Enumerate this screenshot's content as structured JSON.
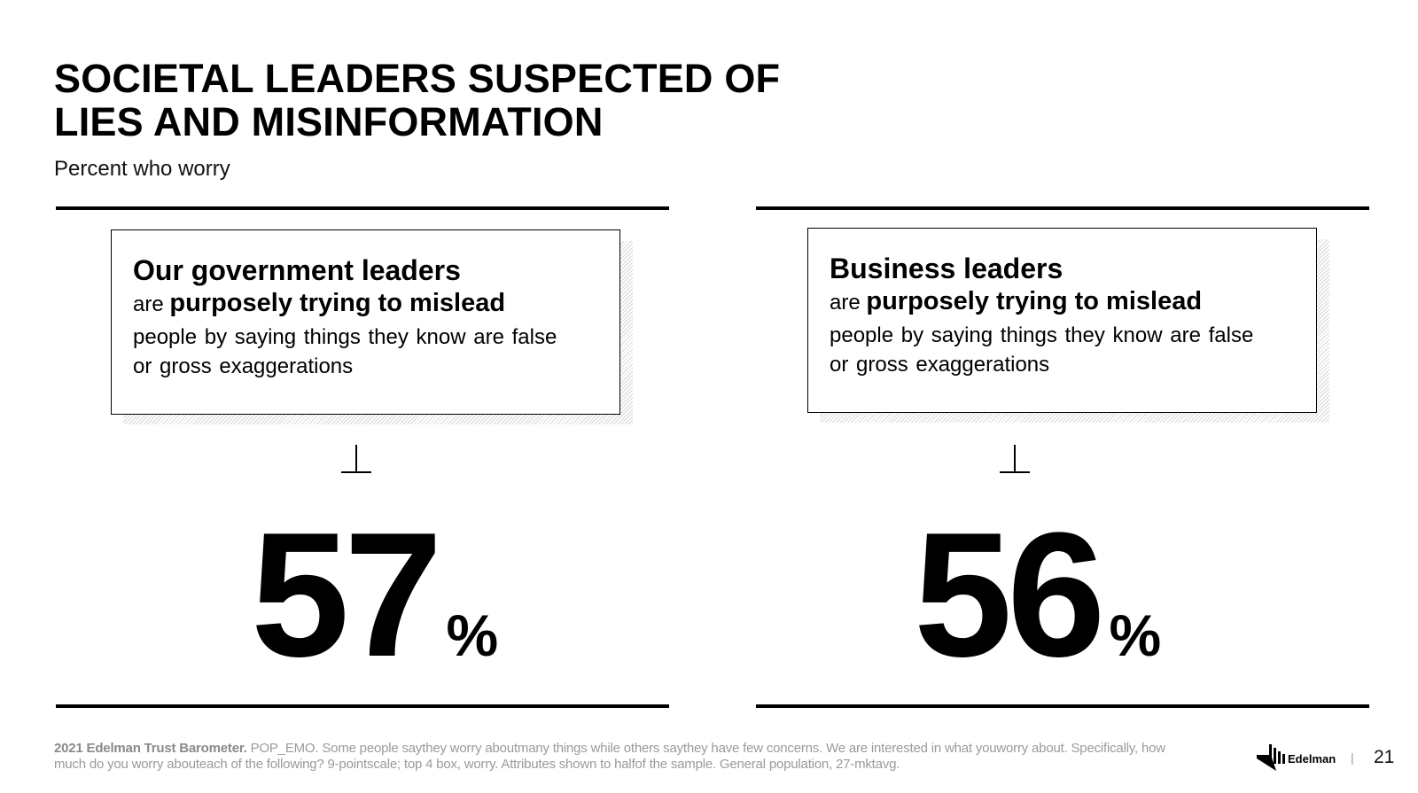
{
  "slide": {
    "title_line1": "SOCIETAL LEADERS SUSPECTED OF",
    "title_line2": "LIES AND MISINFORMATION",
    "subtitle": "Percent who worry"
  },
  "panels": [
    {
      "heading": "Our government leaders",
      "connector": "are",
      "emphasis": "purposely trying to mislead",
      "rest_line1": "people by saying things they know are false",
      "rest_line2": "or gross exaggerations",
      "value": 57,
      "value_text": "57",
      "unit": "%"
    },
    {
      "heading": "Business leaders",
      "connector": "are",
      "emphasis": "purposely trying to mislead",
      "rest_line1": "people by saying things they know are false",
      "rest_line2": "or gross exaggerations",
      "value": 56,
      "value_text": "56",
      "unit": "%"
    }
  ],
  "footer": {
    "source_bold": "2021 Edelman Trust Barometer.",
    "source_text": " POP_EMO.  Some people saythey worry aboutmany things while others saythey have few concerns. We are interested in what youworry about. Specifically, how much do you worry abouteach of the following? 9-pointscale; top 4 box, worry. Attributes shown to halfof the sample. General population, 27-mktavg.",
    "logo_text": "Edelman",
    "separator": "|",
    "page_number": "21"
  },
  "colors": {
    "text": "#000000",
    "footnote": "#9a9a9a",
    "background": "#ffffff"
  }
}
